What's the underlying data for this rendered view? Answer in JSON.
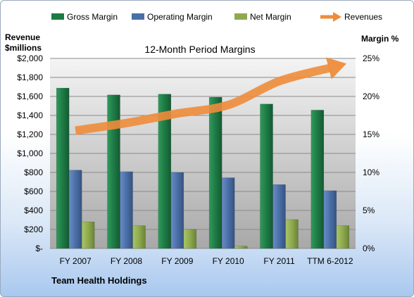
{
  "chart_data": {
    "type": "bar",
    "title": "12-Month Period Margins",
    "categories": [
      "FY 2007",
      "FY 2008",
      "FY 2009",
      "FY 2010",
      "FY 2011",
      "TTM 6-2012"
    ],
    "left_axis": {
      "label_line1": "Revenue",
      "label_line2": "$millions",
      "range": [
        0,
        2000
      ],
      "ticks": [
        "$-",
        "$200",
        "$400",
        "$600",
        "$800",
        "$1,000",
        "$1,200",
        "$1,400",
        "$1,600",
        "$1,800",
        "$2,000"
      ]
    },
    "right_axis": {
      "label": "Margin %",
      "range": [
        0,
        25
      ],
      "ticks": [
        "0%",
        "5%",
        "10%",
        "15%",
        "20%",
        "25%"
      ]
    },
    "series": [
      {
        "name": "Gross Margin",
        "axis": "right",
        "kind": "bar",
        "color": "#1e7a45",
        "values": [
          21.1,
          20.2,
          20.3,
          19.9,
          19.0,
          18.2
        ]
      },
      {
        "name": "Operating Margin",
        "axis": "right",
        "kind": "bar",
        "color": "#4a6fa8",
        "values": [
          10.3,
          10.1,
          10.0,
          9.3,
          8.4,
          7.6
        ]
      },
      {
        "name": "Net Margin",
        "axis": "right",
        "kind": "bar",
        "color": "#8faa4e",
        "values": [
          3.5,
          3.0,
          2.5,
          0.3,
          3.8,
          3.0
        ]
      },
      {
        "name": "Revenues",
        "axis": "left",
        "kind": "line-arrow",
        "color": "#ee8c3b",
        "values": [
          1240,
          1320,
          1420,
          1510,
          1760,
          1900
        ]
      }
    ],
    "legend_position": "top",
    "grid": true,
    "footer": "Team Health Holdings"
  }
}
